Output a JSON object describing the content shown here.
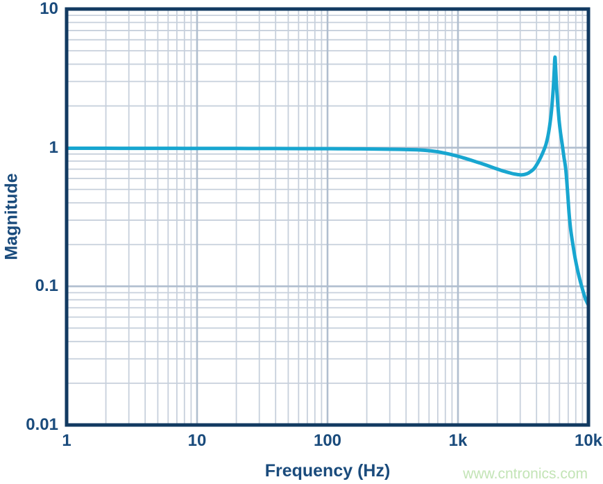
{
  "colors": {
    "curve": "#18a6d0",
    "frame": "#123a61",
    "text_navy": "#1a4b7c",
    "grid_minor": "#c7d0dc",
    "grid_major": "#b0becf",
    "watermark_green": "#c3e4b6",
    "background": "#ffffff"
  },
  "watermark": {
    "text": "www.cntronics.com"
  },
  "chart_data": {
    "type": "line",
    "title": "",
    "xlabel": "Frequency (Hz)",
    "ylabel": "Magnitude",
    "x_scale": "log",
    "y_scale": "log",
    "xlim": [
      1,
      10000
    ],
    "ylim": [
      0.01,
      10
    ],
    "x_tick_values": [
      1,
      10,
      100,
      1000,
      10000
    ],
    "x_tick_labels": [
      "1",
      "10",
      "100",
      "1k",
      "10k"
    ],
    "y_tick_values": [
      10,
      1,
      0.1,
      0.01
    ],
    "y_tick_labels": [
      "10",
      "1",
      "0.1",
      "0.01"
    ],
    "grid": "log major and minor gridlines on both axes",
    "legend": "none",
    "annotations": {
      "flat_passband_magnitude": 0.99,
      "rolloff_start_hz": 500,
      "notch_min": {
        "frequency_hz": 3000,
        "magnitude": 0.637
      },
      "resonance_peak": {
        "frequency_hz": 5540,
        "magnitude": 4.5
      },
      "end_point": {
        "frequency_hz": 10000,
        "magnitude": 0.073
      }
    },
    "series": [
      {
        "name": "magnitude-response",
        "color": "#18a6d0",
        "points": [
          [
            1,
            0.99
          ],
          [
            2,
            0.99
          ],
          [
            3,
            0.989
          ],
          [
            5,
            0.989
          ],
          [
            8,
            0.988
          ],
          [
            12,
            0.988
          ],
          [
            20,
            0.987
          ],
          [
            30,
            0.986
          ],
          [
            50,
            0.985
          ],
          [
            80,
            0.984
          ],
          [
            120,
            0.982
          ],
          [
            180,
            0.98
          ],
          [
            260,
            0.977
          ],
          [
            360,
            0.972
          ],
          [
            460,
            0.967
          ],
          [
            560,
            0.957
          ],
          [
            680,
            0.938
          ],
          [
            800,
            0.912
          ],
          [
            950,
            0.878
          ],
          [
            1100,
            0.845
          ],
          [
            1300,
            0.805
          ],
          [
            1550,
            0.763
          ],
          [
            1850,
            0.72
          ],
          [
            2150,
            0.685
          ],
          [
            2450,
            0.661
          ],
          [
            2700,
            0.646
          ],
          [
            2900,
            0.639
          ],
          [
            3100,
            0.637
          ],
          [
            3300,
            0.644
          ],
          [
            3500,
            0.66
          ],
          [
            3800,
            0.7
          ],
          [
            4100,
            0.78
          ],
          [
            4400,
            0.89
          ],
          [
            4700,
            1.04
          ],
          [
            4900,
            1.22
          ],
          [
            5100,
            1.55
          ],
          [
            5250,
            2.0
          ],
          [
            5380,
            2.7
          ],
          [
            5470,
            3.6
          ],
          [
            5540,
            4.5
          ],
          [
            5610,
            3.7
          ],
          [
            5700,
            2.75
          ],
          [
            5820,
            2.05
          ],
          [
            5950,
            1.6
          ],
          [
            6100,
            1.3
          ],
          [
            6300,
            1.05
          ],
          [
            6500,
            0.85
          ],
          [
            6700,
            0.7
          ],
          [
            6900,
            0.5
          ],
          [
            7100,
            0.34
          ],
          [
            7300,
            0.26
          ],
          [
            7600,
            0.2
          ],
          [
            7900,
            0.16
          ],
          [
            8300,
            0.128
          ],
          [
            8700,
            0.107
          ],
          [
            9100,
            0.092
          ],
          [
            9500,
            0.081
          ],
          [
            10000,
            0.073
          ]
        ]
      }
    ]
  }
}
